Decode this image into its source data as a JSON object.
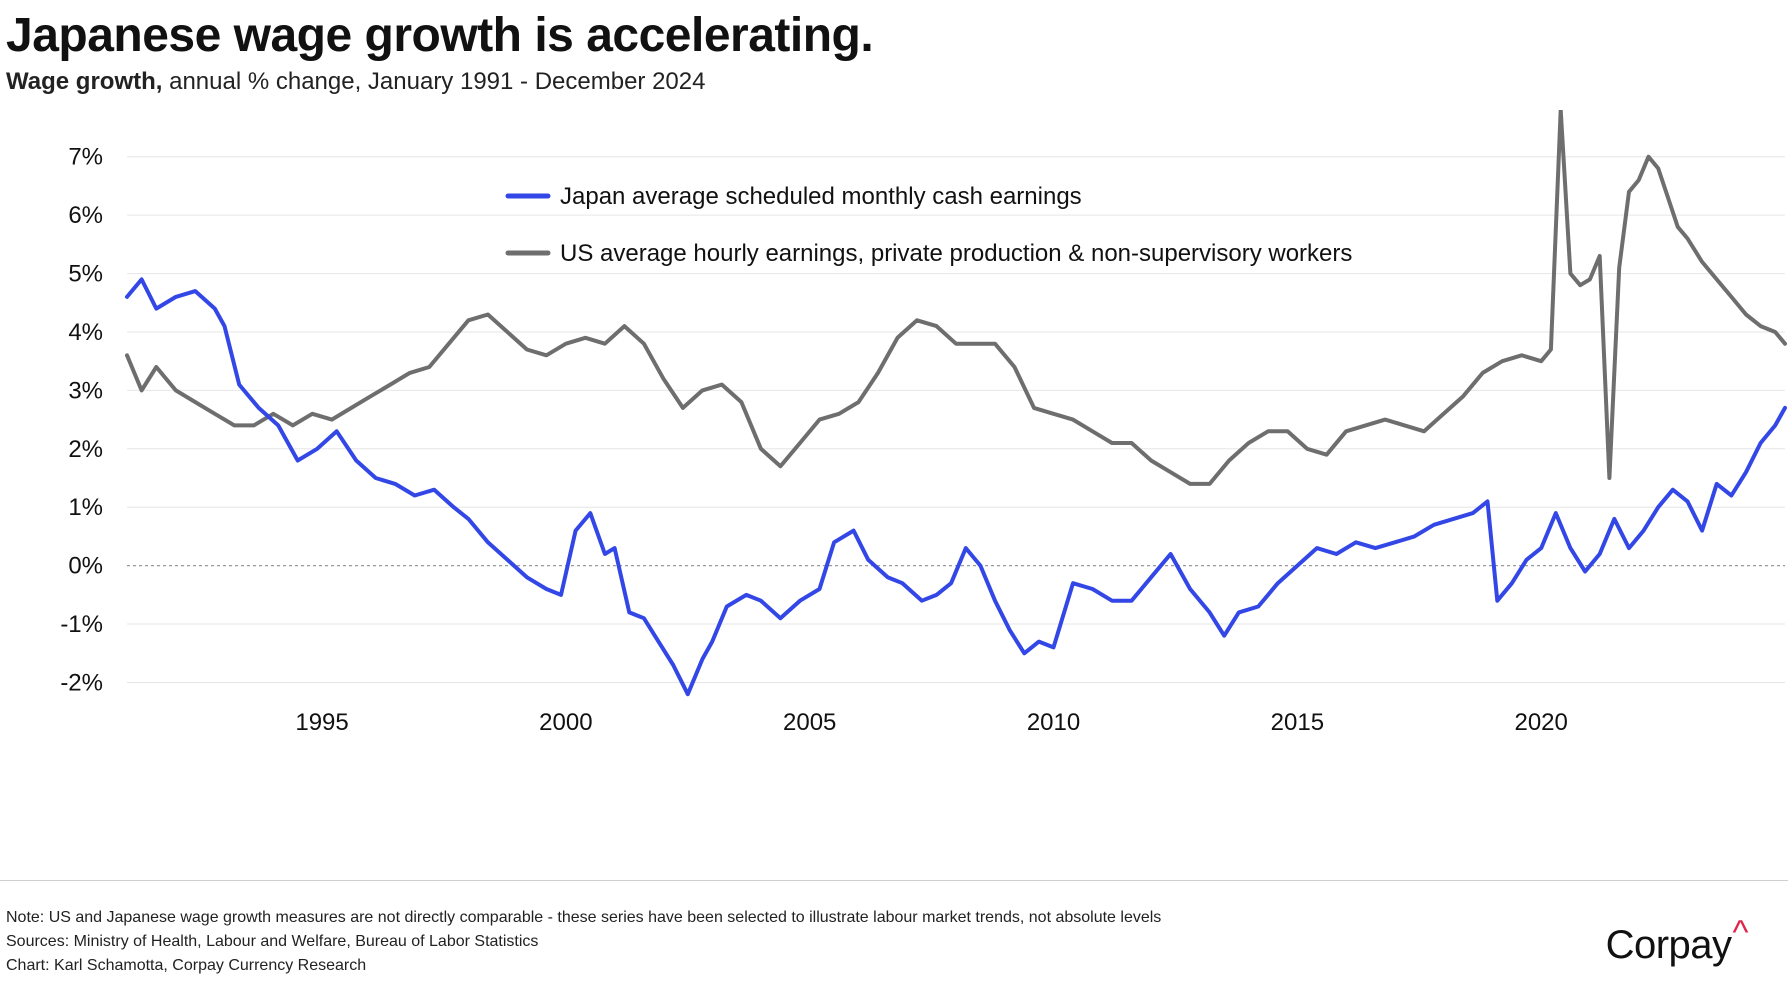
{
  "header": {
    "title": "Japanese wage growth is accelerating.",
    "subtitle_bold": "Wage growth,",
    "subtitle_rest": " annual % change, January 1991 - December 2024"
  },
  "footer": {
    "note": "Note: US and Japanese wage growth measures are not directly comparable - these series have been selected to illustrate labour market trends, not absolute levels",
    "sources": "Sources: Ministry of Health, Labour and Welfare, Bureau of Labor Statistics",
    "credit": "Chart: Karl Schamotta, Corpay Currency Research",
    "logo_text": "Corpay",
    "logo_mark": "^"
  },
  "chart_data": {
    "type": "line",
    "title": "Japanese wage growth is accelerating.",
    "xlabel": "",
    "ylabel": "annual % change",
    "xlim": [
      1991.0,
      2025.0
    ],
    "ylim": [
      -2.3,
      7.8
    ],
    "yticks": [
      -2,
      -1,
      0,
      1,
      2,
      3,
      4,
      5,
      6,
      7
    ],
    "ytick_labels": [
      "-2%",
      "-1%",
      "0%",
      "1%",
      "2%",
      "3%",
      "4%",
      "5%",
      "6%",
      "7%"
    ],
    "xticks": [
      1995,
      2000,
      2005,
      2010,
      2015,
      2020
    ],
    "xtick_labels": [
      "1995",
      "2000",
      "2005",
      "2010",
      "2015",
      "2020"
    ],
    "zero_line": true,
    "grid": "horizontal",
    "legend_position": "top-center",
    "series": [
      {
        "name": "Japan average scheduled monthly cash earnings",
        "color": "#3347e6",
        "x": [
          1991.0,
          1991.3,
          1991.6,
          1992.0,
          1992.4,
          1992.8,
          1993.0,
          1993.3,
          1993.7,
          1994.1,
          1994.5,
          1994.9,
          1995.3,
          1995.7,
          1996.1,
          1996.5,
          1996.9,
          1997.3,
          1997.7,
          1998.0,
          1998.4,
          1998.8,
          1999.2,
          1999.6,
          1999.9,
          2000.2,
          2000.5,
          2000.8,
          2001.0,
          2001.3,
          2001.6,
          2001.9,
          2002.2,
          2002.5,
          2002.8,
          2003.0,
          2003.3,
          2003.7,
          2004.0,
          2004.4,
          2004.8,
          2005.2,
          2005.5,
          2005.9,
          2006.2,
          2006.6,
          2006.9,
          2007.3,
          2007.6,
          2007.9,
          2008.2,
          2008.5,
          2008.8,
          2009.1,
          2009.4,
          2009.7,
          2010.0,
          2010.4,
          2010.8,
          2011.2,
          2011.6,
          2012.0,
          2012.4,
          2012.8,
          2013.2,
          2013.5,
          2013.8,
          2014.2,
          2014.6,
          2015.0,
          2015.4,
          2015.8,
          2016.2,
          2016.6,
          2017.0,
          2017.4,
          2017.8,
          2018.2,
          2018.6,
          2018.9,
          2019.1,
          2019.4,
          2019.7,
          2020.0,
          2020.3,
          2020.6,
          2020.9,
          2021.2,
          2021.5,
          2021.8,
          2022.1,
          2022.4,
          2022.7,
          2023.0,
          2023.3,
          2023.6,
          2023.9,
          2024.2,
          2024.5,
          2024.8,
          2025.0
        ],
        "values": [
          4.6,
          4.9,
          4.4,
          4.6,
          4.7,
          4.4,
          4.1,
          3.1,
          2.7,
          2.4,
          1.8,
          2.0,
          2.3,
          1.8,
          1.5,
          1.4,
          1.2,
          1.3,
          1.0,
          0.8,
          0.4,
          0.1,
          -0.2,
          -0.4,
          -0.5,
          0.6,
          0.9,
          0.2,
          0.3,
          -0.8,
          -0.9,
          -1.3,
          -1.7,
          -2.2,
          -1.6,
          -1.3,
          -0.7,
          -0.5,
          -0.6,
          -0.9,
          -0.6,
          -0.4,
          0.4,
          0.6,
          0.1,
          -0.2,
          -0.3,
          -0.6,
          -0.5,
          -0.3,
          0.3,
          0.0,
          -0.6,
          -1.1,
          -1.5,
          -1.3,
          -1.4,
          -0.3,
          -0.4,
          -0.6,
          -0.6,
          -0.2,
          0.2,
          -0.4,
          -0.8,
          -1.2,
          -0.8,
          -0.7,
          -0.3,
          0.0,
          0.3,
          0.2,
          0.4,
          0.3,
          0.4,
          0.5,
          0.7,
          0.8,
          0.9,
          1.1,
          -0.6,
          -0.3,
          0.1,
          0.3,
          0.9,
          0.3,
          -0.1,
          0.2,
          0.8,
          0.3,
          0.6,
          1.0,
          1.3,
          1.1,
          0.6,
          1.4,
          1.2,
          1.6,
          2.1,
          2.4,
          2.7
        ]
      },
      {
        "name": "US average hourly earnings, private production & non-supervisory workers",
        "color": "#6e6e6e",
        "x": [
          1991.0,
          1991.3,
          1991.6,
          1992.0,
          1992.4,
          1992.8,
          1993.2,
          1993.6,
          1994.0,
          1994.4,
          1994.8,
          1995.2,
          1995.6,
          1996.0,
          1996.4,
          1996.8,
          1997.2,
          1997.6,
          1998.0,
          1998.4,
          1998.8,
          1999.2,
          1999.6,
          2000.0,
          2000.4,
          2000.8,
          2001.2,
          2001.6,
          2002.0,
          2002.4,
          2002.8,
          2003.2,
          2003.6,
          2004.0,
          2004.4,
          2004.8,
          2005.2,
          2005.6,
          2006.0,
          2006.4,
          2006.8,
          2007.2,
          2007.6,
          2008.0,
          2008.4,
          2008.8,
          2009.2,
          2009.6,
          2010.0,
          2010.4,
          2010.8,
          2011.2,
          2011.6,
          2012.0,
          2012.4,
          2012.8,
          2013.2,
          2013.6,
          2014.0,
          2014.4,
          2014.8,
          2015.2,
          2015.6,
          2016.0,
          2016.4,
          2016.8,
          2017.2,
          2017.6,
          2018.0,
          2018.4,
          2018.8,
          2019.2,
          2019.6,
          2020.0,
          2020.2,
          2020.4,
          2020.6,
          2020.8,
          2021.0,
          2021.2,
          2021.4,
          2021.6,
          2021.8,
          2022.0,
          2022.2,
          2022.4,
          2022.6,
          2022.8,
          2023.0,
          2023.3,
          2023.6,
          2023.9,
          2024.2,
          2024.5,
          2024.8,
          2025.0
        ],
        "values": [
          3.6,
          3.0,
          3.4,
          3.0,
          2.8,
          2.6,
          2.4,
          2.4,
          2.6,
          2.4,
          2.6,
          2.5,
          2.7,
          2.9,
          3.1,
          3.3,
          3.4,
          3.8,
          4.2,
          4.3,
          4.0,
          3.7,
          3.6,
          3.8,
          3.9,
          3.8,
          4.1,
          3.8,
          3.2,
          2.7,
          3.0,
          3.1,
          2.8,
          2.0,
          1.7,
          2.1,
          2.5,
          2.6,
          2.8,
          3.3,
          3.9,
          4.2,
          4.1,
          3.8,
          3.8,
          3.8,
          3.4,
          2.7,
          2.6,
          2.5,
          2.3,
          2.1,
          2.1,
          1.8,
          1.6,
          1.4,
          1.4,
          1.8,
          2.1,
          2.3,
          2.3,
          2.0,
          1.9,
          2.3,
          2.4,
          2.5,
          2.4,
          2.3,
          2.6,
          2.9,
          3.3,
          3.5,
          3.6,
          3.5,
          3.7,
          7.8,
          5.0,
          4.8,
          4.9,
          5.3,
          1.5,
          5.1,
          6.4,
          6.6,
          7.0,
          6.8,
          6.3,
          5.8,
          5.6,
          5.2,
          4.9,
          4.6,
          4.3,
          4.1,
          4.0,
          3.8
        ]
      }
    ]
  }
}
